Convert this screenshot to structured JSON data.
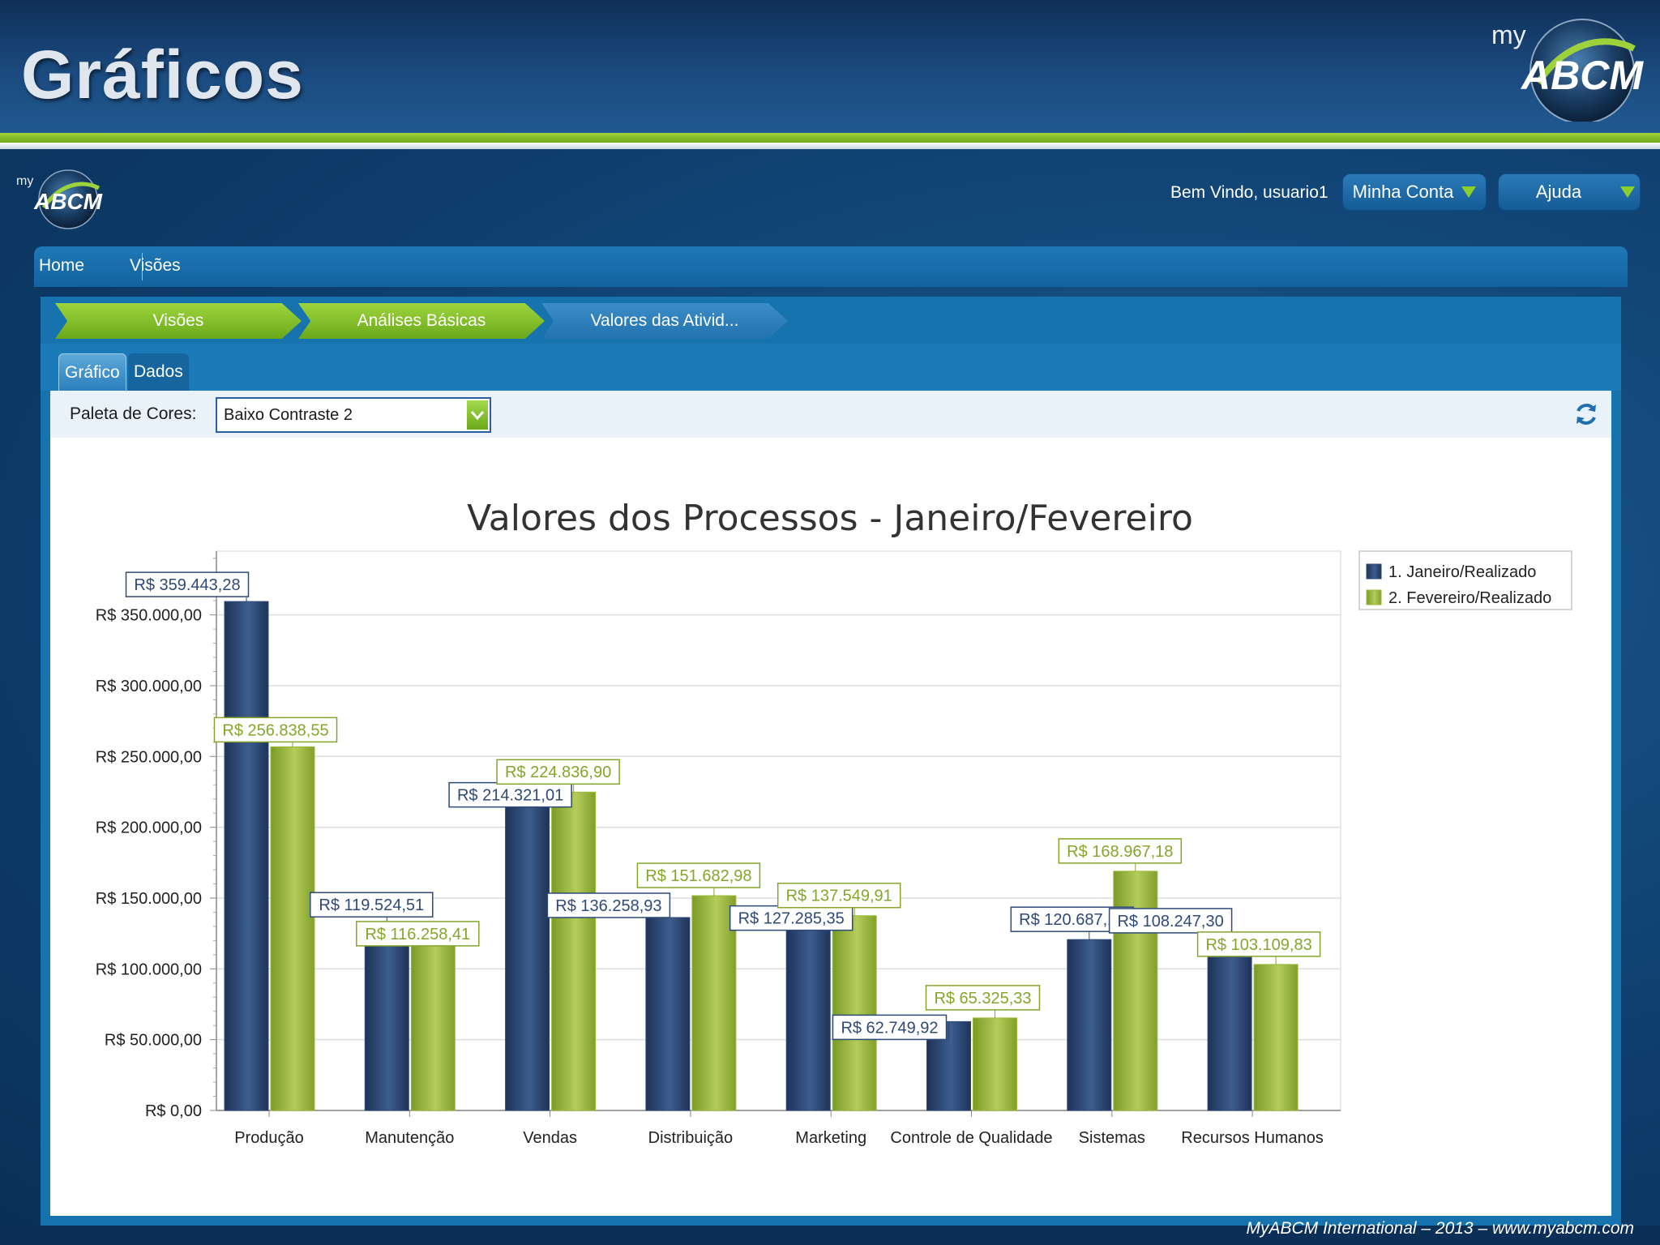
{
  "slide": {
    "title": "Gráficos",
    "footer": "MyABCM International – 2013 – www.myabcm.com"
  },
  "logo": {
    "prefix": "my",
    "name": "ABCM"
  },
  "header": {
    "welcome": "Bem Vindo, usuario1",
    "account_button": "Minha Conta",
    "help_button": "Ajuda"
  },
  "nav": {
    "items": [
      "Home",
      "Visões"
    ]
  },
  "breadcrumb": {
    "items": [
      "Visões",
      "Análises Básicas",
      "Valores das Ativid..."
    ]
  },
  "tabs": {
    "items": [
      "Gráfico",
      "Dados"
    ],
    "active": "Gráfico"
  },
  "toolbar": {
    "palette_label": "Paleta de Cores:",
    "palette_value": "Baixo Contraste 2"
  },
  "colors": {
    "series_1": "#2e4a78",
    "series_2": "#9bbb38",
    "accent_green": "#7fbf24",
    "header_blue": "#1b4b80"
  },
  "icons": {
    "refresh": "refresh-icon",
    "dropdown": "chevron-down-icon"
  },
  "chart_data": {
    "type": "bar",
    "title": "Valores dos Processos - Janeiro/Fevereiro",
    "categories": [
      "Produção",
      "Manutenção",
      "Vendas",
      "Distribuição",
      "Marketing",
      "Controle de Qualidade",
      "Sistemas",
      "Recursos Humanos"
    ],
    "series": [
      {
        "name": "1. Janeiro/Realizado",
        "values": [
          359443.28,
          119524.51,
          214321.01,
          136258.93,
          127285.35,
          62749.92,
          120687.12,
          108247.3
        ],
        "labels": [
          "R$ 359.443,28",
          "R$ 119.524,51",
          "R$ 214.321,01",
          "R$ 136.258,93",
          "R$ 127.285,35",
          "R$ 62.749,92",
          "R$ 120.687,12",
          "R$ 108.247,30"
        ]
      },
      {
        "name": "2. Fevereiro/Realizado",
        "values": [
          256838.55,
          116258.41,
          224836.9,
          151682.98,
          137549.91,
          65325.33,
          168967.18,
          103109.83
        ],
        "labels": [
          "R$ 256.838,55",
          "R$ 116.258,41",
          "R$ 224.836,90",
          "R$ 151.682,98",
          "R$ 137.549,91",
          "R$ 65.325,33",
          "R$ 168.967,18",
          "R$ 103.109,83"
        ]
      }
    ],
    "yticks": [
      0,
      50000,
      100000,
      150000,
      200000,
      250000,
      300000,
      350000
    ],
    "ytick_labels": [
      "R$ 0,00",
      "R$ 50.000,00",
      "R$ 100.000,00",
      "R$ 150.000,00",
      "R$ 200.000,00",
      "R$ 250.000,00",
      "R$ 300.000,00",
      "R$ 350.000,00"
    ],
    "ylim": [
      0,
      395000
    ],
    "grid": true,
    "legend": "top-right"
  }
}
